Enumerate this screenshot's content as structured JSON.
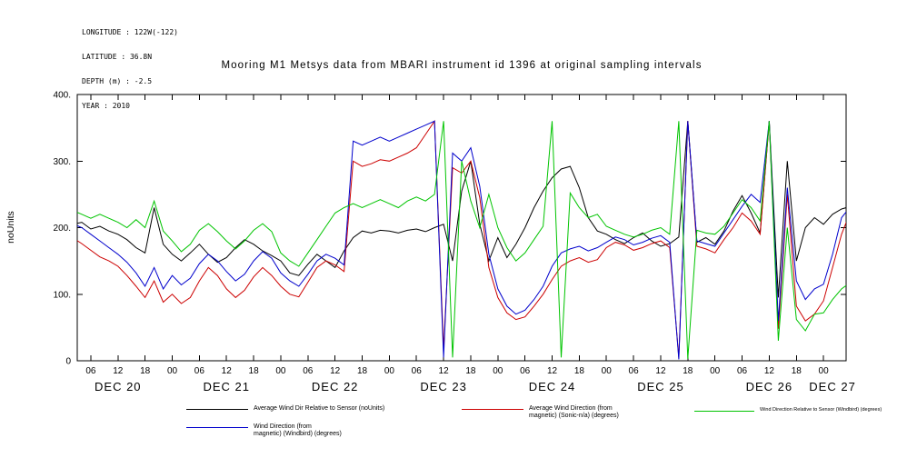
{
  "meta": {
    "lines": [
      "LONGITUDE : 122W(-122)",
      "LATITUDE : 36.8N",
      "DEPTH (m) : -2.5",
      "YEAR : 2010"
    ]
  },
  "title": "Mooring M1 Metsys data from MBARI instrument id 1396 at original sampling intervals",
  "chart_data": {
    "type": "line",
    "title": "Mooring M1 Metsys data from MBARI instrument id 1396 at original sampling intervals",
    "xlabel": "",
    "ylabel": "noUnits",
    "ylim": [
      0,
      400
    ],
    "grid": false,
    "legend_position": "bottom",
    "y_ticks": [
      {
        "value": 0,
        "label": "0"
      },
      {
        "value": 100,
        "label": "100."
      },
      {
        "value": 200,
        "label": "200."
      },
      {
        "value": 300,
        "label": "300."
      },
      {
        "value": 400,
        "label": "400."
      }
    ],
    "x_axis": {
      "start_hour": 3,
      "end_hour": 173,
      "first_tick_hour": 6,
      "last_tick_hour": 168,
      "tick_interval_hours": 6,
      "tick_label_cycle": [
        "06",
        "12",
        "18",
        "00"
      ]
    },
    "day_labels": [
      {
        "label": "DEC 20",
        "hour": 12
      },
      {
        "label": "DEC 21",
        "hour": 36
      },
      {
        "label": "DEC 22",
        "hour": 60
      },
      {
        "label": "DEC 23",
        "hour": 84
      },
      {
        "label": "DEC 24",
        "hour": 108
      },
      {
        "label": "DEC 25",
        "hour": 132
      },
      {
        "label": "DEC 26",
        "hour": 156
      },
      {
        "label": "DEC 27",
        "hour": 170
      }
    ],
    "sample_start_hour": 0,
    "sample_step_hours": 2,
    "series": [
      {
        "name": "Average Wind Dir Relative to Sensor (noUnits)",
        "color": "#000000",
        "values": [
          210,
          205,
          208,
          198,
          202,
          195,
          190,
          182,
          170,
          162,
          230,
          175,
          160,
          150,
          162,
          175,
          160,
          148,
          155,
          170,
          182,
          175,
          165,
          158,
          150,
          132,
          128,
          145,
          160,
          150,
          140,
          165,
          185,
          195,
          192,
          196,
          195,
          192,
          196,
          198,
          194,
          200,
          205,
          150,
          255,
          300,
          205,
          150,
          185,
          155,
          175,
          200,
          230,
          255,
          275,
          288,
          292,
          260,
          215,
          195,
          190,
          182,
          176,
          185,
          192,
          180,
          172,
          176,
          186,
          360,
          178,
          185,
          175,
          195,
          225,
          248,
          222,
          192,
          360,
          95,
          300,
          150,
          200,
          215,
          205,
          220,
          228,
          232
        ]
      },
      {
        "name": "Average Wind Direction (from magnetic) (Sonic-n/a) (degrees)",
        "color": "#cc0000",
        "values": [
          195,
          185,
          176,
          166,
          156,
          150,
          142,
          128,
          112,
          95,
          120,
          88,
          100,
          86,
          95,
          120,
          140,
          128,
          108,
          95,
          106,
          126,
          140,
          128,
          112,
          100,
          96,
          118,
          140,
          150,
          144,
          134,
          300,
          292,
          296,
          302,
          300,
          306,
          312,
          320,
          340,
          360,
          18,
          290,
          282,
          300,
          245,
          140,
          95,
          72,
          62,
          66,
          82,
          100,
          122,
          142,
          150,
          155,
          148,
          152,
          170,
          178,
          174,
          166,
          170,
          176,
          180,
          170,
          5,
          360,
          172,
          168,
          162,
          182,
          200,
          222,
          210,
          190,
          360,
          48,
          250,
          82,
          60,
          70,
          90,
          140,
          190,
          225
        ]
      },
      {
        "name": "Wind Direction (from magnetic) (Windbird) (degrees)",
        "color": "#0000cc",
        "values": [
          215,
          206,
          200,
          190,
          180,
          170,
          160,
          148,
          132,
          112,
          140,
          108,
          128,
          114,
          124,
          146,
          160,
          150,
          134,
          120,
          130,
          150,
          164,
          154,
          132,
          120,
          112,
          130,
          150,
          160,
          154,
          144,
          330,
          324,
          330,
          336,
          330,
          336,
          342,
          348,
          354,
          360,
          5,
          312,
          300,
          320,
          262,
          160,
          108,
          82,
          70,
          76,
          92,
          112,
          142,
          162,
          168,
          172,
          165,
          170,
          178,
          186,
          182,
          174,
          178,
          184,
          188,
          178,
          2,
          360,
          180,
          176,
          172,
          192,
          212,
          232,
          250,
          238,
          360,
          60,
          260,
          120,
          92,
          108,
          115,
          160,
          215,
          232
        ]
      },
      {
        "name": "Wind Direction Relative to Sensor (Windbird) (degrees)",
        "color": "#00c400",
        "values": [
          232,
          226,
          220,
          214,
          220,
          214,
          208,
          200,
          212,
          200,
          240,
          195,
          180,
          164,
          175,
          196,
          206,
          194,
          180,
          168,
          180,
          196,
          206,
          194,
          162,
          150,
          142,
          162,
          182,
          202,
          222,
          230,
          236,
          230,
          236,
          242,
          236,
          230,
          240,
          246,
          240,
          250,
          360,
          5,
          300,
          240,
          200,
          250,
          200,
          170,
          150,
          162,
          182,
          202,
          360,
          5,
          252,
          230,
          215,
          220,
          202,
          196,
          190,
          186,
          190,
          196,
          200,
          190,
          360,
          3,
          196,
          192,
          190,
          202,
          222,
          242,
          230,
          210,
          360,
          30,
          200,
          62,
          45,
          70,
          72,
          92,
          108,
          118
        ]
      }
    ]
  },
  "legend": {
    "entries": [
      {
        "color": "#000000",
        "lines": [
          "Average Wind Dir Relative to Sensor (noUnits)"
        ]
      },
      {
        "color": "#cc0000",
        "lines": [
          "Average Wind Direction (from",
          "magnetic) (Sonic-n/a) (degrees)"
        ]
      },
      {
        "color": "#00c400",
        "lines": [
          "Wind Direction Relative to Sensor (Windbird) (degrees)"
        ]
      },
      {
        "color": "#0000cc",
        "lines": [
          "Wind Direction (from",
          "magnetic) (Windbird) (degrees)"
        ]
      }
    ]
  }
}
